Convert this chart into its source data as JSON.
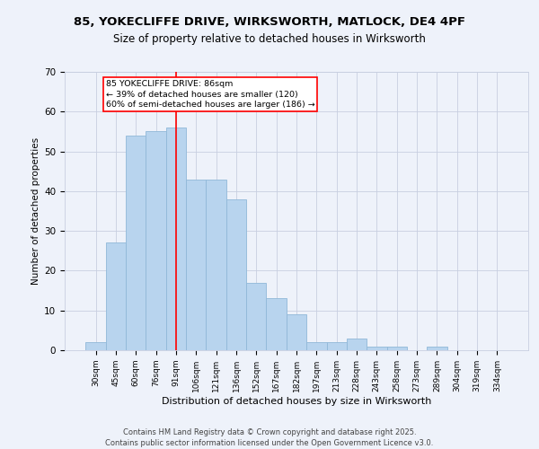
{
  "title_line1": "85, YOKECLIFFE DRIVE, WIRKSWORTH, MATLOCK, DE4 4PF",
  "title_line2": "Size of property relative to detached houses in Wirksworth",
  "xlabel": "Distribution of detached houses by size in Wirksworth",
  "ylabel": "Number of detached properties",
  "categories": [
    "30sqm",
    "45sqm",
    "60sqm",
    "76sqm",
    "91sqm",
    "106sqm",
    "121sqm",
    "136sqm",
    "152sqm",
    "167sqm",
    "182sqm",
    "197sqm",
    "213sqm",
    "228sqm",
    "243sqm",
    "258sqm",
    "273sqm",
    "289sqm",
    "304sqm",
    "319sqm",
    "334sqm"
  ],
  "values": [
    2,
    27,
    54,
    55,
    56,
    43,
    43,
    38,
    17,
    13,
    9,
    2,
    2,
    3,
    1,
    1,
    0,
    1,
    0,
    0,
    0
  ],
  "bar_color": "#b8d4ee",
  "bar_edge_color": "#90b8d8",
  "background_color": "#eef2fa",
  "grid_color": "#c8cfe0",
  "vline_x": 4,
  "vline_color": "red",
  "annotation_text": "85 YOKECLIFFE DRIVE: 86sqm\n← 39% of detached houses are smaller (120)\n60% of semi-detached houses are larger (186) →",
  "annotation_box_color": "white",
  "annotation_box_edge": "red",
  "ylim": [
    0,
    70
  ],
  "yticks": [
    0,
    10,
    20,
    30,
    40,
    50,
    60,
    70
  ],
  "footer_line1": "Contains HM Land Registry data © Crown copyright and database right 2025.",
  "footer_line2": "Contains public sector information licensed under the Open Government Licence v3.0."
}
